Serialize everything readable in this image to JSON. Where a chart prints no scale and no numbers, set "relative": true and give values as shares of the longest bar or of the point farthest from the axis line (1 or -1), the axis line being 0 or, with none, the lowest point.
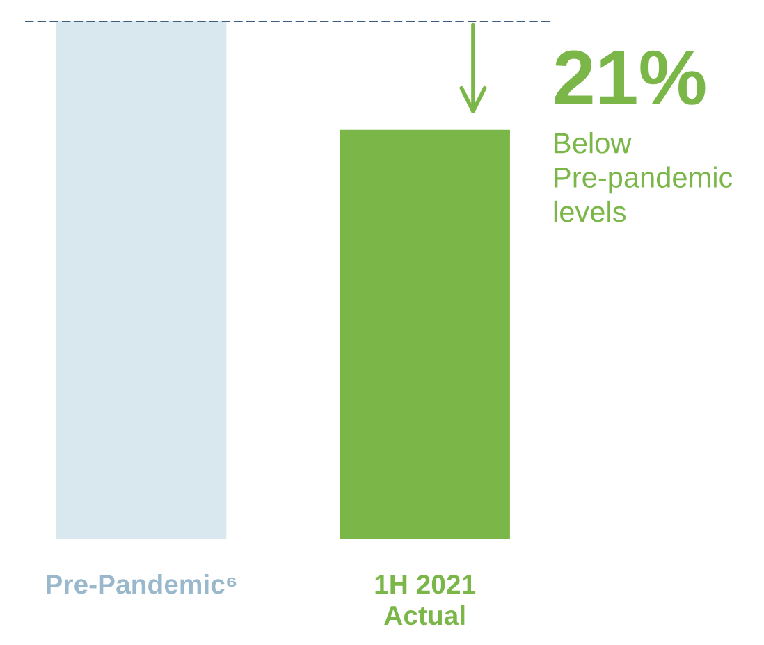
{
  "chart_data": {
    "type": "bar",
    "relative": true,
    "categories": [
      "Pre-Pandemic⁶",
      "1H 2021\nActual"
    ],
    "values": [
      1,
      0.79
    ],
    "colors": [
      "#d9e8ef",
      "#7ab648"
    ],
    "ref_lines": [
      {
        "axis": "y",
        "value": 1,
        "color": "#3f5f82",
        "line_style": "dashed"
      }
    ],
    "annotations": [
      "21%",
      "Below\nPre-pandemic\nlevels"
    ]
  }
}
